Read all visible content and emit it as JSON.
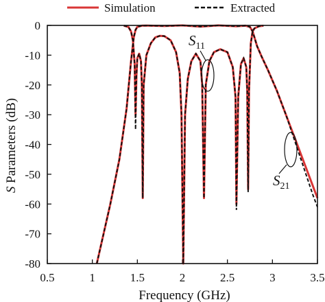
{
  "chart_data": {
    "type": "line",
    "xlabel": "Frequency (GHz)",
    "ylabel_italic": "S",
    "ylabel_rest": " Parameters (dB)",
    "xlim": [
      0.5,
      3.5
    ],
    "ylim": [
      -80,
      0
    ],
    "xticks": [
      "0.5",
      "1",
      "1.5",
      "2",
      "2.5",
      "3",
      "3.5"
    ],
    "yticks": [
      "0",
      "-10",
      "-20",
      "-30",
      "-40",
      "-50",
      "-60",
      "-70",
      "-80"
    ],
    "legend_position": "top",
    "colors": {
      "simulation": "#d93636",
      "extracted": "#111111"
    },
    "series": [
      {
        "name": "Simulation",
        "style": "solid"
      },
      {
        "name": "Extracted",
        "style": "dashed"
      }
    ],
    "annotations": {
      "s11": {
        "main": "S",
        "sub": "11"
      },
      "s21": {
        "main": "S",
        "sub": "21"
      }
    },
    "s21": [
      [
        1.05,
        -80
      ],
      [
        1.2,
        -60
      ],
      [
        1.3,
        -45
      ],
      [
        1.38,
        -28
      ],
      [
        1.43,
        -12
      ],
      [
        1.46,
        -4
      ],
      [
        1.48,
        -1.5
      ],
      [
        1.5,
        -0.5
      ],
      [
        1.55,
        -0.1
      ],
      [
        1.6,
        -0.05
      ],
      [
        1.8,
        -0.2
      ],
      [
        2.0,
        0
      ],
      [
        2.2,
        -0.4
      ],
      [
        2.4,
        0
      ],
      [
        2.6,
        -0.3
      ],
      [
        2.7,
        -0.1
      ],
      [
        2.75,
        -0.5
      ],
      [
        2.78,
        -2
      ],
      [
        2.8,
        -4
      ],
      [
        2.83,
        -7
      ],
      [
        2.88,
        -10.5
      ],
      [
        2.95,
        -15
      ],
      [
        3.05,
        -22
      ],
      [
        3.15,
        -30
      ],
      [
        3.25,
        -38
      ],
      [
        3.35,
        -46
      ],
      [
        3.45,
        -54
      ],
      [
        3.5,
        -58
      ]
    ],
    "s21_extracted": [
      [
        1.05,
        -80
      ],
      [
        1.2,
        -60
      ],
      [
        1.3,
        -45
      ],
      [
        1.38,
        -28
      ],
      [
        1.43,
        -12
      ],
      [
        1.46,
        -4
      ],
      [
        1.48,
        -1.5
      ],
      [
        1.5,
        -0.5
      ],
      [
        1.55,
        -0.1
      ],
      [
        1.6,
        -0.05
      ],
      [
        1.8,
        -0.2
      ],
      [
        2.0,
        0
      ],
      [
        2.2,
        -0.4
      ],
      [
        2.4,
        0
      ],
      [
        2.6,
        -0.3
      ],
      [
        2.7,
        -0.1
      ],
      [
        2.75,
        -0.5
      ],
      [
        2.78,
        -2
      ],
      [
        2.8,
        -4
      ],
      [
        2.83,
        -7
      ],
      [
        2.88,
        -10.5
      ],
      [
        2.95,
        -15
      ],
      [
        3.05,
        -22
      ],
      [
        3.15,
        -30
      ],
      [
        3.25,
        -39
      ],
      [
        3.35,
        -48
      ],
      [
        3.45,
        -57
      ],
      [
        3.5,
        -61
      ]
    ],
    "s11": [
      [
        1.35,
        -0.1
      ],
      [
        1.4,
        -0.5
      ],
      [
        1.43,
        -2
      ],
      [
        1.45,
        -5
      ],
      [
        1.47,
        -13
      ],
      [
        1.48,
        -30
      ],
      [
        1.49,
        -17
      ],
      [
        1.5,
        -11
      ],
      [
        1.52,
        -9.5
      ],
      [
        1.54,
        -12
      ],
      [
        1.55,
        -20
      ],
      [
        1.56,
        -58
      ],
      [
        1.57,
        -20
      ],
      [
        1.6,
        -10
      ],
      [
        1.65,
        -6
      ],
      [
        1.7,
        -4
      ],
      [
        1.75,
        -3.5
      ],
      [
        1.8,
        -3.6
      ],
      [
        1.87,
        -5
      ],
      [
        1.93,
        -9
      ],
      [
        1.97,
        -16
      ],
      [
        1.99,
        -30
      ],
      [
        2.01,
        -80
      ],
      [
        2.03,
        -30
      ],
      [
        2.06,
        -18
      ],
      [
        2.1,
        -12
      ],
      [
        2.15,
        -9.5
      ],
      [
        2.2,
        -12
      ],
      [
        2.22,
        -20
      ],
      [
        2.24,
        -58
      ],
      [
        2.26,
        -20
      ],
      [
        2.3,
        -12
      ],
      [
        2.35,
        -9
      ],
      [
        2.42,
        -8
      ],
      [
        2.5,
        -9
      ],
      [
        2.56,
        -14
      ],
      [
        2.59,
        -24
      ],
      [
        2.6,
        -60
      ],
      [
        2.62,
        -24
      ],
      [
        2.65,
        -13
      ],
      [
        2.68,
        -11
      ],
      [
        2.71,
        -14
      ],
      [
        2.72,
        -22
      ],
      [
        2.73,
        -55
      ],
      [
        2.74,
        -22
      ],
      [
        2.76,
        -6
      ],
      [
        2.78,
        -2
      ],
      [
        2.8,
        -1
      ],
      [
        2.85,
        -0.3
      ],
      [
        2.9,
        -0.1
      ]
    ],
    "s11_extracted": [
      [
        1.35,
        -0.1
      ],
      [
        1.4,
        -0.5
      ],
      [
        1.43,
        -2
      ],
      [
        1.45,
        -5
      ],
      [
        1.47,
        -13
      ],
      [
        1.48,
        -35
      ],
      [
        1.49,
        -17
      ],
      [
        1.5,
        -11
      ],
      [
        1.52,
        -9.5
      ],
      [
        1.54,
        -12
      ],
      [
        1.55,
        -20
      ],
      [
        1.56,
        -58
      ],
      [
        1.57,
        -20
      ],
      [
        1.6,
        -10
      ],
      [
        1.65,
        -6
      ],
      [
        1.7,
        -4
      ],
      [
        1.75,
        -3.5
      ],
      [
        1.8,
        -3.6
      ],
      [
        1.87,
        -5
      ],
      [
        1.93,
        -9
      ],
      [
        1.97,
        -16
      ],
      [
        1.99,
        -30
      ],
      [
        2.01,
        -80
      ],
      [
        2.03,
        -30
      ],
      [
        2.06,
        -18
      ],
      [
        2.1,
        -12
      ],
      [
        2.15,
        -9.5
      ],
      [
        2.2,
        -12
      ],
      [
        2.22,
        -20
      ],
      [
        2.24,
        -58
      ],
      [
        2.26,
        -20
      ],
      [
        2.3,
        -12
      ],
      [
        2.35,
        -9
      ],
      [
        2.42,
        -8
      ],
      [
        2.5,
        -9
      ],
      [
        2.56,
        -14
      ],
      [
        2.59,
        -24
      ],
      [
        2.6,
        -62
      ],
      [
        2.62,
        -24
      ],
      [
        2.65,
        -13
      ],
      [
        2.68,
        -11
      ],
      [
        2.71,
        -14
      ],
      [
        2.72,
        -22
      ],
      [
        2.73,
        -56
      ],
      [
        2.74,
        -22
      ],
      [
        2.76,
        -6
      ],
      [
        2.78,
        -2
      ],
      [
        2.8,
        -1
      ],
      [
        2.85,
        -0.3
      ],
      [
        2.9,
        -0.1
      ]
    ]
  }
}
